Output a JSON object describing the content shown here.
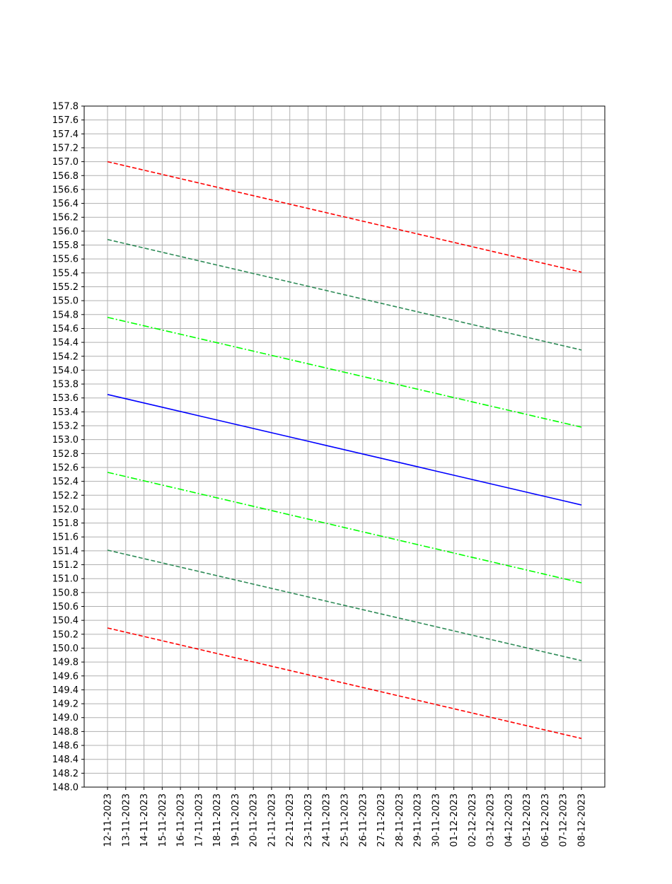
{
  "chart_data": {
    "type": "line",
    "title": "",
    "xlabel": "",
    "ylabel": "",
    "x": [
      "12-11-2023",
      "13-11-2023",
      "14-11-2023",
      "15-11-2023",
      "16-11-2023",
      "17-11-2023",
      "18-11-2023",
      "19-11-2023",
      "20-11-2023",
      "21-11-2023",
      "22-11-2023",
      "23-11-2023",
      "24-11-2023",
      "25-11-2023",
      "26-11-2023",
      "27-11-2023",
      "28-11-2023",
      "29-11-2023",
      "30-11-2023",
      "01-12-2023",
      "02-12-2023",
      "03-12-2023",
      "04-12-2023",
      "05-12-2023",
      "06-12-2023",
      "07-12-2023",
      "08-12-2023"
    ],
    "ylim": [
      148.0,
      157.8
    ],
    "ytick_step": 0.2,
    "grid": true,
    "legend": "none",
    "series": [
      {
        "color": "#ff0000",
        "dash": "dashed",
        "start": 157.0,
        "end": 155.41
      },
      {
        "color": "#2e8b57",
        "dash": "dashed",
        "start": 155.88,
        "end": 154.29
      },
      {
        "color": "#00ff00",
        "dash": "dashdot",
        "start": 154.76,
        "end": 153.18
      },
      {
        "color": "#0000ff",
        "dash": "solid",
        "start": 153.65,
        "end": 152.06
      },
      {
        "color": "#00ff00",
        "dash": "dashdot",
        "start": 152.53,
        "end": 150.94
      },
      {
        "color": "#2e8b57",
        "dash": "dashed",
        "start": 151.41,
        "end": 149.82
      },
      {
        "color": "#ff0000",
        "dash": "dashed",
        "start": 150.29,
        "end": 148.7
      }
    ]
  }
}
